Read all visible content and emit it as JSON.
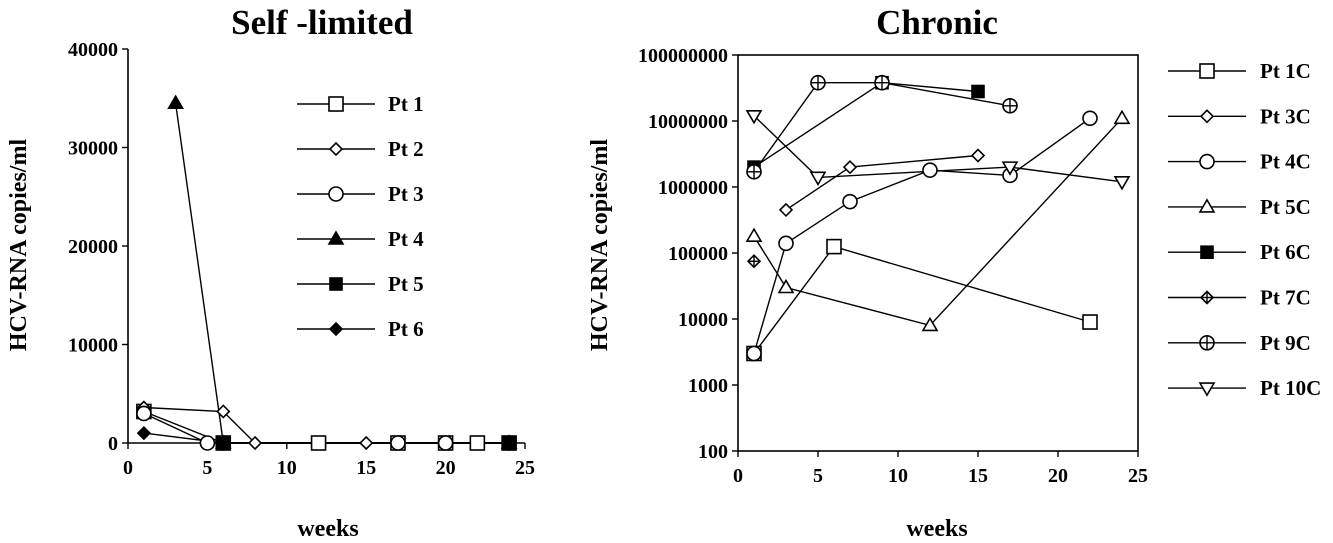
{
  "chart_data": [
    {
      "type": "line",
      "title": "Self -limited",
      "xlabel": "weeks",
      "ylabel": "HCV-RNA copies/ml",
      "xlim": [
        0,
        25
      ],
      "ylim": [
        0,
        40000
      ],
      "x_ticks": [
        0,
        5,
        10,
        15,
        20,
        25
      ],
      "y_ticks": [
        0,
        10000,
        20000,
        30000,
        40000
      ],
      "grid": false,
      "legend_position": "top-right (inside)",
      "series": [
        {
          "name": "Pt 1",
          "marker": "square-open",
          "points": [
            [
              1,
              3200
            ],
            [
              6,
              0
            ],
            [
              12,
              0
            ],
            [
              17,
              0
            ],
            [
              20,
              0
            ],
            [
              22,
              0
            ],
            [
              24,
              0
            ]
          ]
        },
        {
          "name": "Pt 2",
          "marker": "diamond-open",
          "points": [
            [
              1,
              3600
            ],
            [
              6,
              3200
            ],
            [
              8,
              0
            ],
            [
              15,
              0
            ],
            [
              24,
              0
            ]
          ]
        },
        {
          "name": "Pt 3",
          "marker": "circle-open",
          "points": [
            [
              1,
              3000
            ],
            [
              5,
              0
            ],
            [
              6,
              0
            ],
            [
              17,
              0
            ],
            [
              20,
              0
            ],
            [
              24,
              0
            ]
          ]
        },
        {
          "name": "Pt 4",
          "marker": "triangle-filled",
          "points": [
            [
              3,
              34500
            ],
            [
              6,
              0
            ],
            [
              24,
              0
            ]
          ]
        },
        {
          "name": "Pt 5",
          "marker": "square-filled",
          "points": [
            [
              6,
              0
            ],
            [
              24,
              0
            ]
          ]
        },
        {
          "name": "Pt 6",
          "marker": "diamond-filled",
          "points": [
            [
              1,
              1000
            ],
            [
              6,
              0
            ],
            [
              24,
              0
            ]
          ]
        }
      ]
    },
    {
      "type": "line",
      "title": "Chronic",
      "xlabel": "weeks",
      "ylabel": "HCV-RNA copies/ml",
      "xlim": [
        0,
        25
      ],
      "ylim": [
        100,
        100000000
      ],
      "yscale": "log",
      "x_ticks": [
        0,
        5,
        10,
        15,
        20,
        25
      ],
      "y_tick_labels": [
        "100",
        "1000",
        "10000",
        "100000",
        "1000000",
        "10000000",
        "100000000"
      ],
      "grid": false,
      "legend_position": "right (outside)",
      "series": [
        {
          "name": "Pt 1C",
          "marker": "square-open",
          "points": [
            [
              1,
              3000
            ],
            [
              6,
              125000
            ],
            [
              22,
              9000
            ]
          ]
        },
        {
          "name": "Pt 3C",
          "marker": "diamond-open",
          "points": [
            [
              3,
              450000
            ],
            [
              7,
              2000000
            ],
            [
              15,
              3000000
            ]
          ]
        },
        {
          "name": "Pt 4C",
          "marker": "circle-open",
          "points": [
            [
              1,
              3000
            ],
            [
              3,
              140000
            ],
            [
              7,
              600000
            ],
            [
              12,
              1800000
            ],
            [
              17,
              1500000
            ],
            [
              22,
              11000000
            ]
          ]
        },
        {
          "name": "Pt 5C",
          "marker": "triangle-open",
          "points": [
            [
              1,
              180000
            ],
            [
              3,
              30000
            ],
            [
              12,
              8000
            ],
            [
              24,
              11000000
            ]
          ]
        },
        {
          "name": "Pt 6C",
          "marker": "square-filled",
          "points": [
            [
              1,
              2000000
            ],
            [
              9,
              38000000
            ],
            [
              15,
              28000000
            ]
          ]
        },
        {
          "name": "Pt 7C",
          "marker": "diamond-crossed",
          "points": [
            [
              1,
              75000
            ]
          ]
        },
        {
          "name": "Pt 9C",
          "marker": "circle-crossed",
          "points": [
            [
              1,
              1700000
            ],
            [
              5,
              38000000
            ],
            [
              9,
              38000000
            ],
            [
              17,
              17000000
            ]
          ]
        },
        {
          "name": "Pt 10C",
          "marker": "triangle-down-open",
          "points": [
            [
              1,
              12000000
            ],
            [
              5,
              1400000
            ],
            [
              17,
              2000000
            ],
            [
              24,
              1200000
            ]
          ]
        }
      ]
    }
  ]
}
